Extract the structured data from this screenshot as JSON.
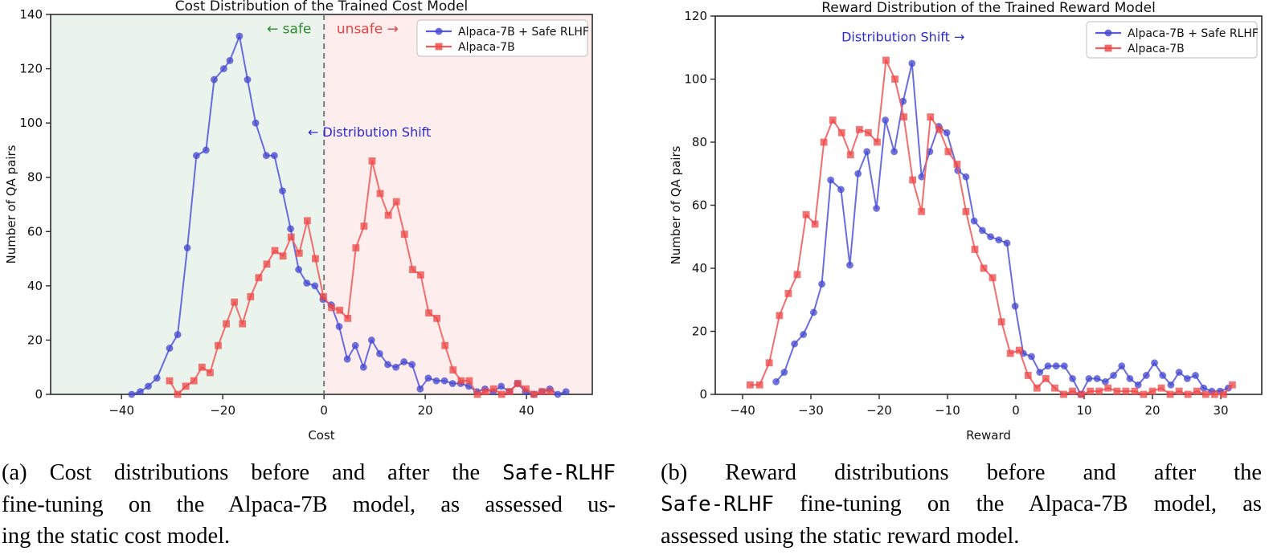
{
  "chart_data": [
    {
      "type": "line",
      "title": "Cost Distribution of the Trained Cost Model",
      "xlabel": "Cost",
      "ylabel": "Number of QA pairs",
      "xlim": [
        -54,
        53
      ],
      "ylim": [
        0,
        140
      ],
      "grid": false,
      "legend_position": "upper right",
      "xtick_vals": [
        -40,
        -20,
        0,
        20,
        40
      ],
      "xtick_labels": [
        "−40",
        "−20",
        "0",
        "20",
        "40"
      ],
      "ytick_vals": [
        0,
        20,
        40,
        60,
        80,
        100,
        120,
        140
      ],
      "ytick_labels": [
        "0",
        "20",
        "40",
        "60",
        "80",
        "100",
        "120",
        "140"
      ],
      "regions": [
        {
          "name": "safe-region",
          "from": -54,
          "to": 0,
          "color": "#eaf3ec"
        },
        {
          "name": "unsafe-region",
          "from": 0,
          "to": 53,
          "color": "#fdeeed"
        }
      ],
      "vline": {
        "x": 0,
        "color": "#7a7a7a",
        "dash": "7 5"
      },
      "annotations": [
        {
          "name": "safe-label",
          "text": "← safe",
          "x": -2.5,
          "y": 133,
          "anchor": "end",
          "color": "#2e8b2e",
          "size": 17
        },
        {
          "name": "unsafe-label",
          "text": "unsafe →",
          "x": 2.5,
          "y": 133,
          "anchor": "start",
          "color": "#e04545",
          "size": 17
        },
        {
          "name": "distribution-shift-label",
          "text": "← Distribution Shift",
          "x": -3.2,
          "y": 95,
          "anchor": "start",
          "color": "#2b2bd5",
          "size": 16
        }
      ],
      "series": [
        {
          "name": "Alpaca-7B + Safe RLHF",
          "marker": "circle",
          "line_color": "#5a5ddb",
          "marker_color": "#4346cf",
          "x": [
            -38,
            -36.3,
            -34.7,
            -33,
            -30.5,
            -28.9,
            -27,
            -25.2,
            -23.3,
            -21.7,
            -19.8,
            -18.6,
            -16.7,
            -15.1,
            -13.5,
            -11.4,
            -9.8,
            -8.2,
            -6.6,
            -5,
            -3.4,
            -1.8,
            -0.2,
            1.4,
            3,
            4.6,
            6.2,
            7.8,
            9.4,
            11,
            12.6,
            14.2,
            15.8,
            17.4,
            19,
            20.6,
            22.2,
            23.8,
            25.4,
            27,
            28.6,
            30.2,
            31.8,
            33.4,
            35,
            36.6,
            38.2,
            39.8,
            41.4,
            43,
            44.6,
            46.2,
            47.8
          ],
          "y": [
            0,
            1,
            3,
            6,
            17,
            22,
            54,
            88,
            90,
            116,
            120,
            123,
            132,
            116,
            100,
            88,
            88,
            75,
            61,
            46,
            41,
            40,
            35,
            33,
            25,
            13,
            18,
            10,
            20,
            15,
            11,
            10,
            12,
            11,
            2,
            6,
            5,
            5,
            4,
            4,
            3,
            1,
            2,
            1,
            3,
            1,
            4,
            1,
            0,
            1,
            2,
            0,
            1
          ]
        },
        {
          "name": "Alpaca-7B",
          "marker": "square",
          "line_color": "#f15e5e",
          "marker_color": "#ee4545",
          "x": [
            -30.5,
            -28.9,
            -27.3,
            -25.7,
            -24.1,
            -22.5,
            -20.9,
            -19.3,
            -17.7,
            -16.1,
            -14.5,
            -12.9,
            -11.3,
            -9.7,
            -8.1,
            -6.5,
            -4.9,
            -3.3,
            -1.7,
            -0.1,
            1.5,
            3.1,
            4.7,
            6.3,
            7.9,
            9.5,
            11.1,
            12.7,
            14.3,
            15.9,
            17.5,
            19.1,
            20.7,
            22.3,
            23.9,
            25.5,
            27.1,
            28.7,
            30.3,
            31.9,
            33.5,
            35.1,
            36.7,
            38.3,
            39.9,
            41.5,
            43.1,
            44.7
          ],
          "y": [
            5,
            0,
            3,
            5,
            10,
            8,
            18,
            26,
            34,
            26,
            36,
            43,
            48,
            53,
            51,
            58,
            52,
            64,
            50,
            36,
            32,
            31,
            28,
            54,
            62,
            86,
            74,
            66,
            71,
            59,
            46,
            44,
            30,
            28,
            18,
            9,
            5,
            5,
            0,
            1,
            2,
            0,
            1,
            4,
            2,
            0,
            1,
            1
          ]
        }
      ]
    },
    {
      "type": "line",
      "title": "Reward Distribution of the Trained Reward Model",
      "xlabel": "Reward",
      "ylabel": "Number of QA pairs",
      "xlim": [
        -44,
        36
      ],
      "ylim": [
        0,
        120
      ],
      "grid": false,
      "legend_position": "upper right",
      "xtick_vals": [
        -40,
        -30,
        -20,
        -10,
        0,
        10,
        20,
        30
      ],
      "xtick_labels": [
        "−40",
        "−30",
        "−20",
        "−10",
        "0",
        "10",
        "20",
        "30"
      ],
      "ytick_vals": [
        0,
        20,
        40,
        60,
        80,
        100,
        120
      ],
      "ytick_labels": [
        "0",
        "20",
        "40",
        "60",
        "80",
        "100",
        "120"
      ],
      "regions": [],
      "annotations": [
        {
          "name": "distribution-shift-label",
          "text": "Distribution Shift →",
          "x": -16.5,
          "y": 112,
          "anchor": "middle",
          "color": "#2b2bd5",
          "size": 16
        }
      ],
      "series": [
        {
          "name": "Alpaca-7B + Safe RLHF",
          "marker": "circle",
          "line_color": "#5a5ddb",
          "marker_color": "#4346cf",
          "x": [
            -35.1,
            -33.9,
            -32.4,
            -31.1,
            -29.6,
            -28.4,
            -27.1,
            -25.6,
            -24.3,
            -23.1,
            -21.8,
            -20.4,
            -19.1,
            -17.8,
            -16.5,
            -15.2,
            -13.8,
            -12.6,
            -11.3,
            -10.1,
            -8.5,
            -7.3,
            -6.1,
            -4.9,
            -3.7,
            -2.5,
            -1.3,
            -0.1,
            1.1,
            2.3,
            3.5,
            4.7,
            5.9,
            7.1,
            8.3,
            9.5,
            10.7,
            11.9,
            13.1,
            14.3,
            15.5,
            16.7,
            17.9,
            19.1,
            20.3,
            21.5,
            22.7,
            23.9,
            25.1,
            26.3,
            27.5,
            28.7,
            29.9,
            31.1
          ],
          "y": [
            4,
            7,
            16,
            19,
            26,
            35,
            68,
            65,
            41,
            70,
            77,
            59,
            87,
            77,
            93,
            105,
            69,
            77,
            85,
            83,
            71,
            69,
            55,
            52,
            50,
            49,
            48,
            28,
            13,
            12,
            7,
            9,
            9,
            9,
            5,
            0,
            5,
            5,
            4,
            6,
            9,
            5,
            3,
            6,
            10,
            6,
            3,
            7,
            5,
            6,
            2,
            1,
            1,
            2
          ]
        },
        {
          "name": "Alpaca-7B",
          "marker": "square",
          "line_color": "#f15e5e",
          "marker_color": "#ee4545",
          "x": [
            -38.9,
            -37.5,
            -36.1,
            -34.6,
            -33.3,
            -32,
            -30.7,
            -29.4,
            -28.1,
            -26.8,
            -25.5,
            -24.2,
            -22.9,
            -21.6,
            -20.3,
            -19,
            -17.7,
            -16.4,
            -15.1,
            -13.8,
            -12.5,
            -11.2,
            -9.9,
            -8.6,
            -7.3,
            -6,
            -4.7,
            -3.4,
            -2.1,
            -0.8,
            0.5,
            1.8,
            3.1,
            4.4,
            5.7,
            7,
            8.3,
            9.6,
            10.9,
            12.2,
            13.5,
            14.8,
            16.1,
            17.4,
            18.7,
            20,
            21.3,
            22.6,
            23.9,
            25.2,
            26.5,
            27.8,
            29.1,
            30.4,
            31.7
          ],
          "y": [
            3,
            3,
            10,
            25,
            32,
            38,
            57,
            54,
            80,
            87,
            83,
            76,
            84,
            83,
            80,
            106,
            100,
            88,
            68,
            58,
            88,
            84,
            77,
            73,
            58,
            46,
            40,
            37,
            23,
            13,
            14,
            6,
            2,
            5,
            2,
            0,
            1,
            0,
            1,
            1,
            2,
            1,
            1,
            1,
            0,
            1,
            2,
            0,
            1,
            0,
            1,
            0,
            0,
            0,
            3
          ]
        }
      ]
    }
  ],
  "captions": {
    "a": {
      "l1a": "(a) Cost distributions before and after the ",
      "l1b": "Safe-RLHF",
      "l2": "fine-tuning on the Alpaca-7B model, as assessed us-",
      "l3": "ing the static cost model."
    },
    "b": {
      "l1": "(b) Reward distributions before and after the",
      "l2a": "Safe-RLHF",
      "l2b": " fine-tuning on the Alpaca-7B model, as",
      "l3": "assessed using the static reward model."
    }
  }
}
